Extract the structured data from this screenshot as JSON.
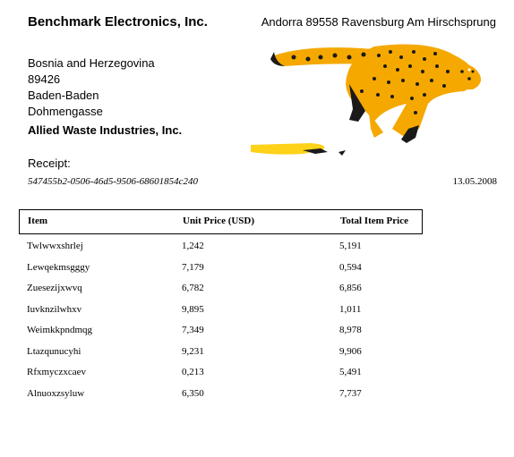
{
  "header": {
    "company": "Benchmark Electronics, Inc.",
    "address": "Andorra 89558 Ravensburg Am Hirschsprung"
  },
  "recipient": {
    "country": "Bosnia and Herzegovina",
    "postal": "89426",
    "city": "Baden-Baden",
    "street": "Dohmengasse",
    "organization": "Allied Waste Industries, Inc."
  },
  "receipt": {
    "label": "Receipt:",
    "id": "547455b2-0506-46d5-9506-68601854c240",
    "date": "13.05.2008"
  },
  "logo": {
    "icon": "cheetah-logo",
    "colors": {
      "body": "#f5a800",
      "spots": "#1a1a1a",
      "accent": "#ffd21a"
    }
  },
  "table": {
    "headers": [
      "Item",
      "Unit Price (USD)",
      "Total Item Price"
    ],
    "rows": [
      [
        "Twlwwxshrlej",
        "1,242",
        "5,191"
      ],
      [
        "Lewqekmsgggy",
        "7,179",
        "0,594"
      ],
      [
        "Zuesezijxwvq",
        "6,782",
        "6,856"
      ],
      [
        "Iuvknzilwhxv",
        "9,895",
        "1,011"
      ],
      [
        "Weimkkpndmqg",
        "7,349",
        "8,978"
      ],
      [
        "Ltazqunucyhi",
        "9,231",
        "9,906"
      ],
      [
        "Rfxmyczxcaev",
        "0,213",
        "5,491"
      ],
      [
        "Alnuoxzsyluw",
        "6,350",
        "7,737"
      ]
    ]
  }
}
